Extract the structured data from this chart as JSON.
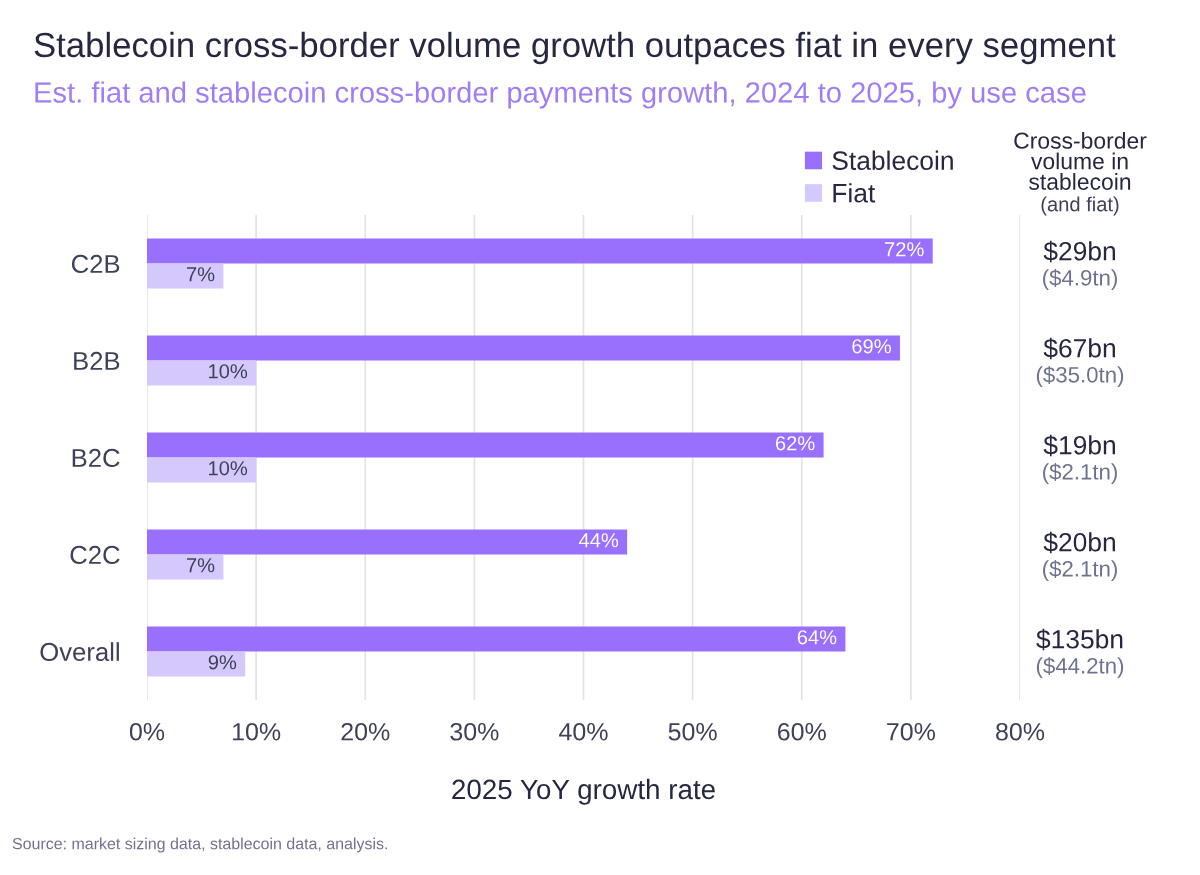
{
  "chart_data": {
    "type": "bar",
    "orientation": "horizontal",
    "title": "Stablecoin cross-border volume growth outpaces fiat in every segment",
    "subtitle": "Est. fiat and stablecoin cross-border payments growth, 2024 to 2025, by use case",
    "xlabel": "2025 YoY growth rate",
    "categories": [
      "C2B",
      "B2B",
      "B2C",
      "C2C",
      "Overall"
    ],
    "series": [
      {
        "name": "Stablecoin",
        "color": "#9970fd",
        "values": [
          72,
          69,
          62,
          44,
          64
        ],
        "value_labels": [
          "72%",
          "69%",
          "62%",
          "44%",
          "64%"
        ]
      },
      {
        "name": "Fiat",
        "color": "#d5c8fc",
        "values": [
          7,
          10,
          10,
          7,
          9
        ],
        "value_labels": [
          "7%",
          "10%",
          "10%",
          "7%",
          "9%"
        ]
      }
    ],
    "xlim": [
      0,
      80
    ],
    "xticks": [
      {
        "value": 0,
        "label": "0%"
      },
      {
        "value": 10,
        "label": "10%"
      },
      {
        "value": 20,
        "label": "20%"
      },
      {
        "value": 30,
        "label": "30%"
      },
      {
        "value": 40,
        "label": "40%"
      },
      {
        "value": 50,
        "label": "50%"
      },
      {
        "value": 60,
        "label": "60%"
      },
      {
        "value": 70,
        "label": "70%"
      },
      {
        "value": 80,
        "label": "80%"
      }
    ],
    "grid": "x",
    "legend": "top right",
    "annotations": [
      "Cross-border\nvolume in\nstablecoin\n(and fiat)",
      "$29bn\n($4.9tn)",
      "$67bn\n($35.0tn)",
      "$19bn\n($2.1tn)",
      "$20bn\n($2.1tn)",
      "$135bn\n($44.2tn)",
      "Source: market sizing data, stablecoin data, analysis."
    ]
  }
}
